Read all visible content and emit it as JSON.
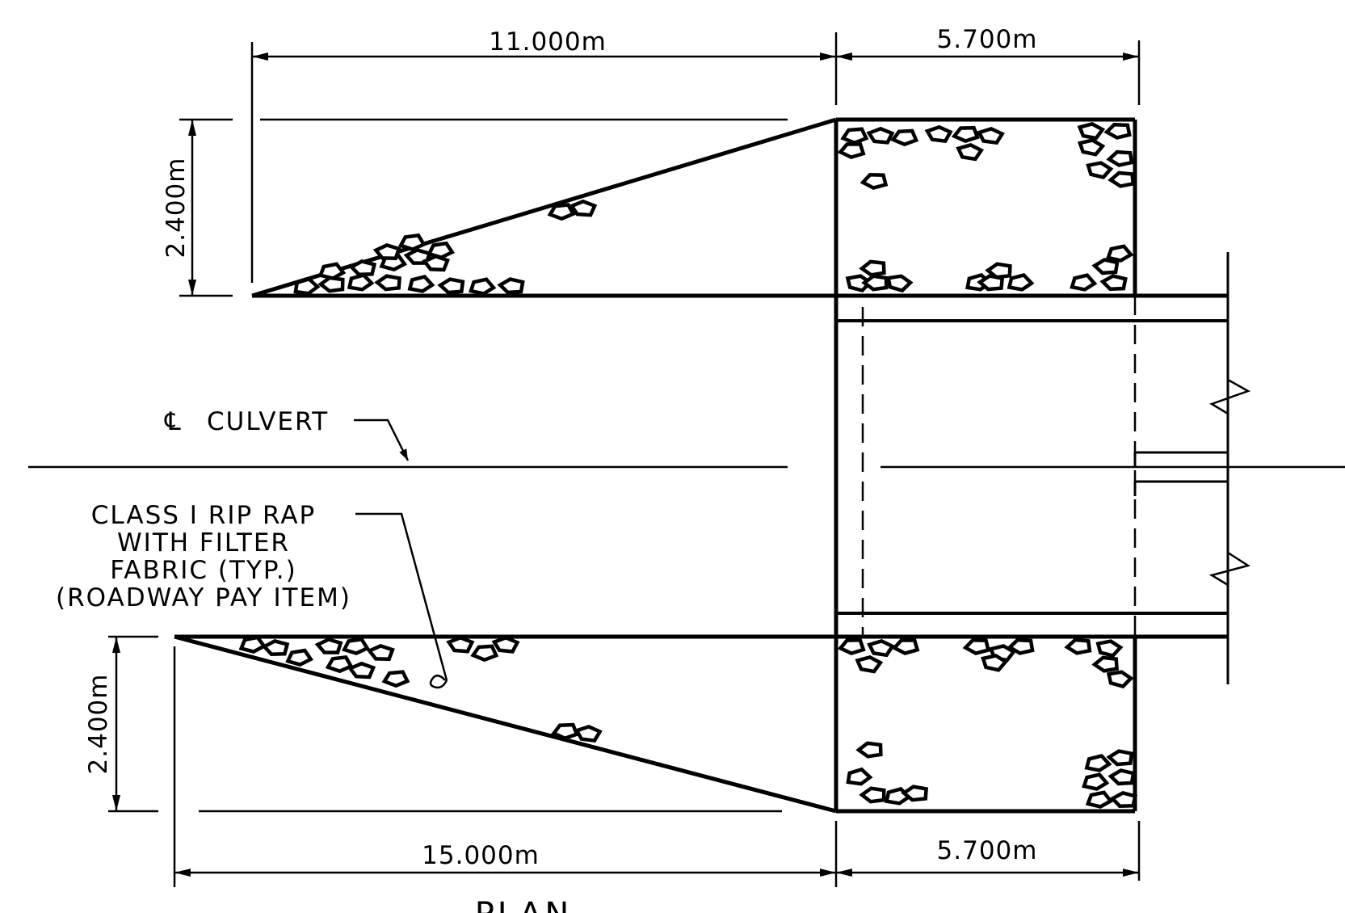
{
  "drawing": {
    "dimensions": {
      "top_left_length": "11.000m",
      "top_right_length": "5.700m",
      "bottom_left_length": "15.000m",
      "bottom_right_length": "5.700m",
      "top_wing_width": "2.400m",
      "bottom_wing_width": "2.400m"
    },
    "labels": {
      "centerline_symbol": "℄",
      "centerline_text": "CULVERT",
      "riprap_note": [
        "CLASS I RIP RAP",
        "WITH FILTER",
        "FABRIC (TYP.)",
        "(ROADWAY PAY ITEM)"
      ],
      "view_title": "PLAN"
    }
  }
}
